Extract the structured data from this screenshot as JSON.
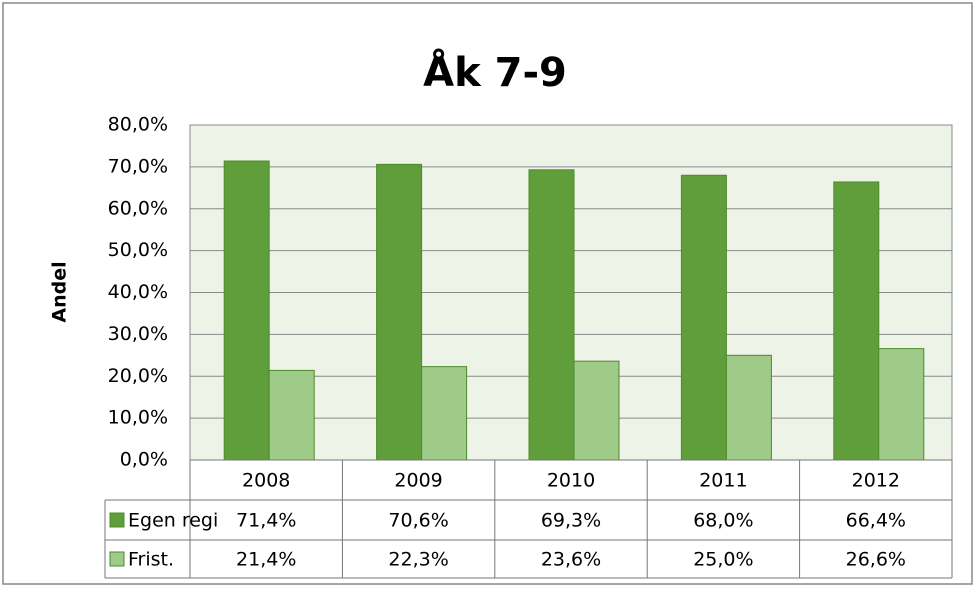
{
  "chart_data": {
    "type": "bar",
    "title": "Åk 7-9",
    "y_label": "Andel",
    "categories": [
      "2008",
      "2009",
      "2010",
      "2011",
      "2012"
    ],
    "series": [
      {
        "name": "Egen regi",
        "color": "#5f9e3a",
        "values": [
          71.4,
          70.6,
          69.3,
          68.0,
          66.4
        ],
        "value_labels": [
          "71,4%",
          "70,6%",
          "69,3%",
          "68,0%",
          "66,4%"
        ]
      },
      {
        "name": "Frist.",
        "color": "#9fcb89",
        "values": [
          21.4,
          22.3,
          23.6,
          25.0,
          26.6
        ],
        "value_labels": [
          "21,4%",
          "22,3%",
          "23,6%",
          "25,0%",
          "26,6%"
        ]
      }
    ],
    "ylim": [
      0,
      80
    ],
    "yticks": [
      {
        "value": 0,
        "label": "0,0%"
      },
      {
        "value": 10,
        "label": "10,0%"
      },
      {
        "value": 20,
        "label": "20,0%"
      },
      {
        "value": 30,
        "label": "30,0%"
      },
      {
        "value": 40,
        "label": "40,0%"
      },
      {
        "value": 50,
        "label": "50,0%"
      },
      {
        "value": 60,
        "label": "60,0%"
      },
      {
        "value": 70,
        "label": "70,0%"
      },
      {
        "value": 80,
        "label": "80,0%"
      }
    ],
    "grid": true
  }
}
